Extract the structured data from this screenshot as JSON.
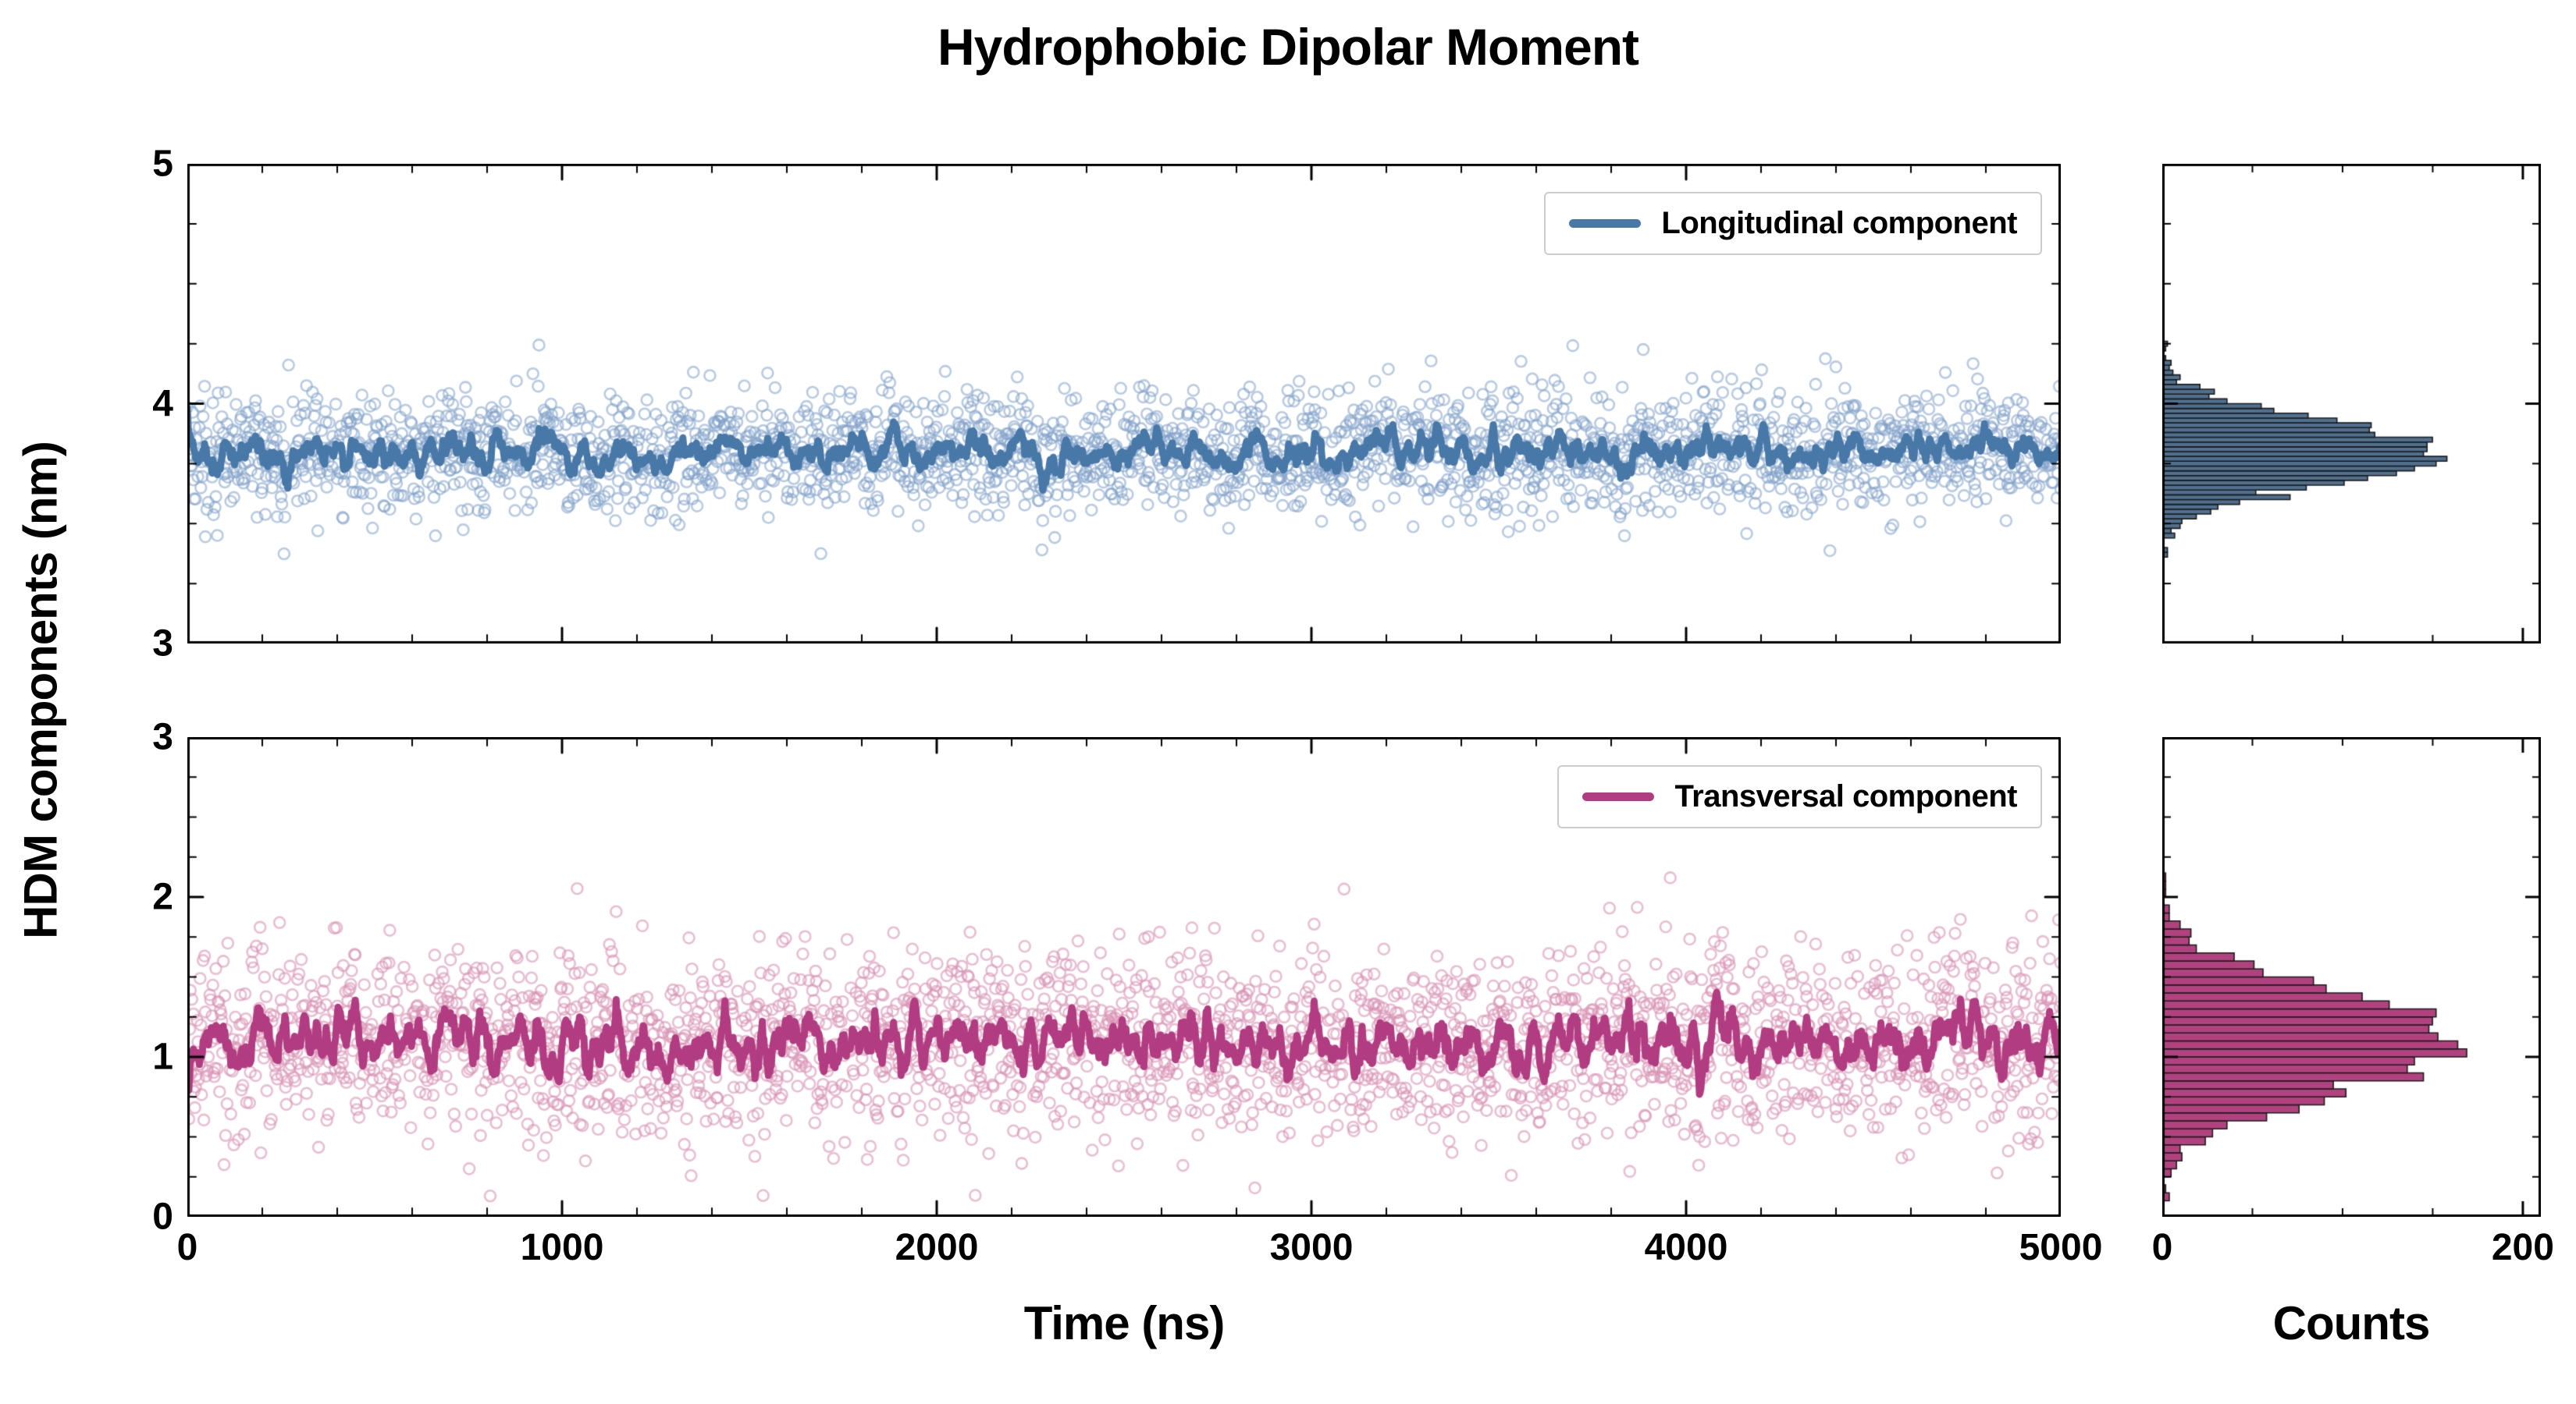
{
  "chart_data": {
    "type": "scatter",
    "suptitle": "Hydrophobic Dipolar Moment",
    "ylabel_shared": "HDM components (nm)",
    "xlabel_time": "Time (ns)",
    "xlabel_counts": "Counts",
    "axis_color": "#000000",
    "background": "#ffffff",
    "legend_position": "upper right",
    "grid": false,
    "panels": [
      {
        "id": "longitudinal",
        "kind": "timeseries",
        "slot": "tl",
        "legend_label": "Longitudinal component",
        "xlim": [
          0,
          5000
        ],
        "ylim": [
          3,
          5
        ],
        "xticks": [
          0,
          1000,
          2000,
          3000,
          4000,
          5000
        ],
        "yticks": [
          3,
          4,
          5
        ],
        "x_minor": 200,
        "y_minor": 0.25,
        "show_x_labels": false,
        "show_y_labels": true,
        "scatter_color": "#7FA1C8",
        "scatter_alpha": 0.55,
        "line_color": "#4878A8",
        "n_points": 2500,
        "mean": 3.8,
        "std": 0.13,
        "clip": [
          3.18,
          4.38
        ],
        "seed": 20240601,
        "smooth_window": 10
      },
      {
        "id": "longitudinal_hist",
        "kind": "histogram",
        "slot": "tr",
        "source": "longitudinal",
        "xlim": [
          0,
          210
        ],
        "ylim": [
          3,
          5
        ],
        "xticks": [
          0,
          200
        ],
        "yticks": [
          3,
          4,
          5
        ],
        "x_minor": 50,
        "y_minor": 0.25,
        "show_x_labels": false,
        "show_y_labels": false,
        "bar_color": "#50708F",
        "edge_color": "#1b1b1b",
        "bin_width": 0.02,
        "peak_count_approx": 155
      },
      {
        "id": "transversal",
        "kind": "timeseries",
        "slot": "bl",
        "legend_label": "Transversal component",
        "xlim": [
          0,
          5000
        ],
        "ylim": [
          0,
          3
        ],
        "xticks": [
          0,
          1000,
          2000,
          3000,
          4000,
          5000
        ],
        "yticks": [
          0,
          1,
          2,
          3
        ],
        "x_minor": 200,
        "y_minor": 0.25,
        "show_x_labels": true,
        "show_y_labels": true,
        "scatter_color": "#D892B4",
        "scatter_alpha": 0.6,
        "line_color": "#B23C81",
        "n_points": 2500,
        "mean": 1.1,
        "std": 0.3,
        "clip": [
          0.05,
          2.12
        ],
        "seed": 777001,
        "smooth_window": 10
      },
      {
        "id": "transversal_hist",
        "kind": "histogram",
        "slot": "br",
        "source": "transversal",
        "xlim": [
          0,
          210
        ],
        "ylim": [
          0,
          3
        ],
        "xticks": [
          0,
          200
        ],
        "yticks": [
          0,
          1,
          2,
          3
        ],
        "x_minor": 50,
        "y_minor": 0.25,
        "show_x_labels": true,
        "show_y_labels": false,
        "bar_color": "#B1427F",
        "edge_color": "#1b1b1b",
        "bin_width": 0.05,
        "peak_count_approx": 165
      }
    ]
  }
}
